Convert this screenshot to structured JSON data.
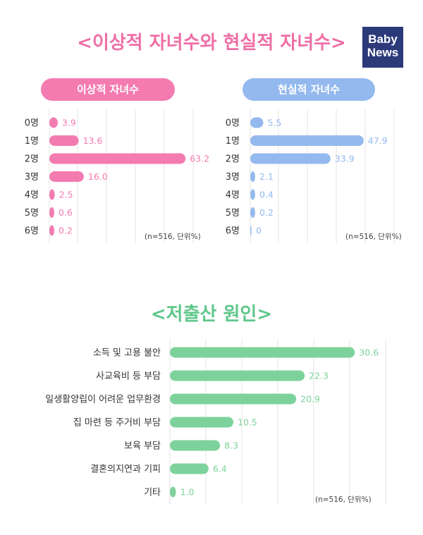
{
  "header": {
    "title": "<이상적 자녀수와 현실적 자녀수>",
    "logo_line1": "Baby",
    "logo_line2": "News"
  },
  "colors": {
    "ideal": "#f37bb0",
    "real": "#94b9ee",
    "cause": "#7dd29b",
    "grid": "#e3e3e3"
  },
  "chart_data": [
    {
      "type": "bar",
      "orientation": "horizontal",
      "title": "이상적 자녀수",
      "categories": [
        "0명",
        "1명",
        "2명",
        "3명",
        "4명",
        "5명",
        "6명"
      ],
      "values": [
        3.9,
        13.6,
        63.2,
        16.0,
        2.5,
        0.6,
        0.2
      ],
      "value_labels": [
        "3.9",
        "13.6",
        "63.2",
        "16.0",
        "2.5",
        "0.6",
        "0.2"
      ],
      "xlim": [
        0,
        70
      ],
      "note": "(n=516, 단위%)",
      "grid": true
    },
    {
      "type": "bar",
      "orientation": "horizontal",
      "title": "현실적 자녀수",
      "categories": [
        "0명",
        "1명",
        "2명",
        "3명",
        "4명",
        "5명",
        "6명"
      ],
      "values": [
        5.5,
        47.9,
        33.9,
        2.1,
        0.4,
        0.2,
        0
      ],
      "value_labels": [
        "5.5",
        "47.9",
        "33.9",
        "2.1",
        "0.4",
        "0.2",
        "0"
      ],
      "xlim": [
        0,
        56
      ],
      "note": "(n=516, 단위%)",
      "grid": true
    },
    {
      "type": "bar",
      "orientation": "horizontal",
      "title": "<저출산 원인>",
      "categories": [
        "소득 및 고용 불안",
        "사교육비 등 부담",
        "일생활양립이 어려운 업무환경",
        "집 마련 등 주거비 부담",
        "보육 부담",
        "결혼의지연과 기피",
        "기타"
      ],
      "values": [
        30.6,
        22.3,
        20.9,
        10.5,
        8.3,
        6.4,
        1.0
      ],
      "value_labels": [
        "30.6",
        "22.3",
        "20.9",
        "10.5",
        "8.3",
        "6.4",
        "1.0"
      ],
      "xlim": [
        0,
        35
      ],
      "note": "(n=516, 단위%)",
      "grid": true
    }
  ]
}
